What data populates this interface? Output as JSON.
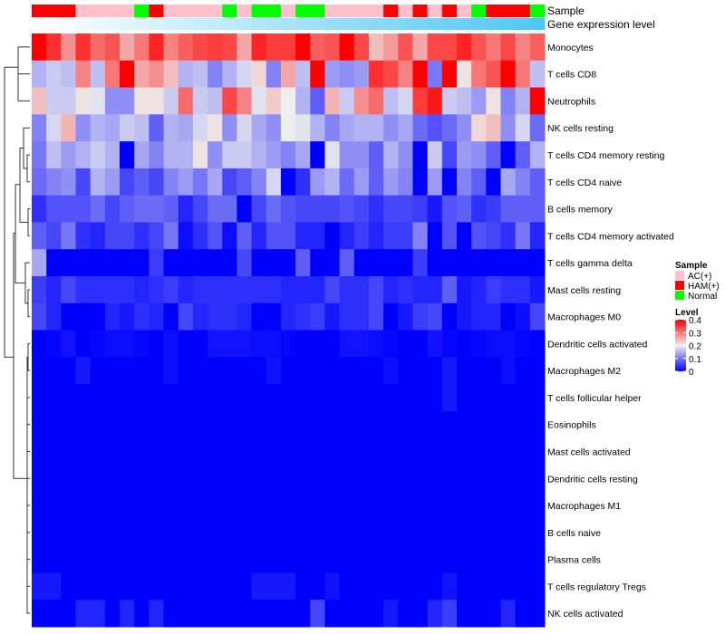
{
  "chart_data": {
    "type": "heatmap",
    "annotation_labels": {
      "sample": "Sample",
      "gene": "Gene expression level"
    },
    "sample_groups": [
      "HAM(+)",
      "HAM(+)",
      "HAM(+)",
      "AC(+)",
      "AC(+)",
      "AC(+)",
      "AC(+)",
      "Normal",
      "HAM(+)",
      "AC(+)",
      "AC(+)",
      "AC(+)",
      "AC(+)",
      "Normal",
      "AC(+)",
      "Normal",
      "Normal",
      "AC(+)",
      "Normal",
      "Normal",
      "AC(+)",
      "AC(+)",
      "AC(+)",
      "AC(+)",
      "HAM(+)",
      "AC(+)",
      "HAM(+)",
      "AC(+)",
      "HAM(+)",
      "AC(+)",
      "Normal",
      "HAM(+)",
      "HAM(+)",
      "HAM(+)",
      "Normal"
    ],
    "rows": [
      "Monocytes",
      "T cells CD8",
      "Neutrophils",
      "NK cells resting",
      "T cells CD4 memory resting",
      "T cells CD4 naive",
      "B cells memory",
      "T cells CD4 memory activated",
      "T cells gamma delta",
      "Mast cells resting",
      "Macrophages M0",
      "Dendritic cells activated",
      "Macrophages M2",
      "T cells follicular helper",
      "Eosinophils",
      "Mast cells activated",
      "Dendritic cells resting",
      "Macrophages M1",
      "B cells naive",
      "Plasma cells",
      "T cells regulatory  Tregs",
      "NK cells activated"
    ],
    "values": [
      [
        0.4,
        0.36,
        0.28,
        0.36,
        0.31,
        0.33,
        0.26,
        0.3,
        0.37,
        0.29,
        0.32,
        0.34,
        0.35,
        0.34,
        0.26,
        0.37,
        0.35,
        0.35,
        0.4,
        0.32,
        0.33,
        0.4,
        0.34,
        0.24,
        0.27,
        0.33,
        0.26,
        0.34,
        0.34,
        0.37,
        0.33,
        0.3,
        0.34,
        0.29,
        0.32
      ],
      [
        0.15,
        0.17,
        0.16,
        0.29,
        0.16,
        0.3,
        0.4,
        0.26,
        0.28,
        0.24,
        0.15,
        0.16,
        0.11,
        0.15,
        0.18,
        0.22,
        0.11,
        0.26,
        0.16,
        0.4,
        0.13,
        0.12,
        0.13,
        0.36,
        0.34,
        0.29,
        0.4,
        0.1,
        0.4,
        0.21,
        0.3,
        0.33,
        0.4,
        0.3,
        0.16
      ],
      [
        0.24,
        0.17,
        0.17,
        0.21,
        0.19,
        0.12,
        0.12,
        0.21,
        0.21,
        0.17,
        0.31,
        0.17,
        0.16,
        0.34,
        0.29,
        0.19,
        0.23,
        0.2,
        0.15,
        0.08,
        0.25,
        0.17,
        0.28,
        0.31,
        0.16,
        0.18,
        0.35,
        0.38,
        0.17,
        0.16,
        0.13,
        0.21,
        0.11,
        0.15,
        0.4
      ],
      [
        0.11,
        0.18,
        0.25,
        0.12,
        0.15,
        0.14,
        0.17,
        0.16,
        0.08,
        0.15,
        0.14,
        0.18,
        0.21,
        0.12,
        0.18,
        0.14,
        0.12,
        0.2,
        0.19,
        0.15,
        0.11,
        0.14,
        0.15,
        0.15,
        0.12,
        0.14,
        0.09,
        0.07,
        0.09,
        0.12,
        0.22,
        0.24,
        0.12,
        0.18,
        0.09
      ],
      [
        0.1,
        0.16,
        0.13,
        0.15,
        0.17,
        0.15,
        0,
        0.14,
        0.11,
        0.15,
        0.15,
        0.21,
        0.12,
        0.17,
        0.17,
        0.15,
        0.13,
        0.11,
        0.14,
        0,
        0.19,
        0.12,
        0.12,
        0.08,
        0.15,
        0.12,
        0,
        0.17,
        0.06,
        0.13,
        0.12,
        0.08,
        0,
        0.08,
        0.15
      ],
      [
        0.09,
        0.11,
        0.12,
        0.06,
        0.15,
        0.13,
        0.06,
        0.08,
        0.06,
        0.11,
        0.13,
        0.1,
        0.14,
        0.06,
        0.08,
        0.11,
        0.18,
        0,
        0.04,
        0.13,
        0.15,
        0.09,
        0.13,
        0.08,
        0.13,
        0.11,
        0,
        0.13,
        0,
        0.11,
        0.08,
        0,
        0.14,
        0.11,
        0.08
      ],
      [
        0.04,
        0.07,
        0.07,
        0.07,
        0.09,
        0.06,
        0.08,
        0.09,
        0.09,
        0.08,
        0.03,
        0.06,
        0.09,
        0.09,
        0,
        0.06,
        0.09,
        0.07,
        0.06,
        0.06,
        0.06,
        0.07,
        0.06,
        0.04,
        0.06,
        0.06,
        0.05,
        0.02,
        0.07,
        0.08,
        0.04,
        0.05,
        0.08,
        0.08,
        0.08
      ],
      [
        0.08,
        0.06,
        0.1,
        0.04,
        0.03,
        0.06,
        0.06,
        0.04,
        0.06,
        0.1,
        0.01,
        0.04,
        0.07,
        0.01,
        0.08,
        0.03,
        0.07,
        0.07,
        0.03,
        0.03,
        0,
        0.03,
        0.05,
        0.03,
        0.05,
        0.05,
        0.11,
        0,
        0.07,
        0,
        0.07,
        0.06,
        0.04,
        0.1,
        0.03
      ],
      [
        0.14,
        0,
        0,
        0,
        0,
        0,
        0,
        0,
        0.05,
        0,
        0,
        0,
        0,
        0,
        0.06,
        0,
        0,
        0,
        0.08,
        0,
        0,
        0.08,
        0,
        0,
        0,
        0,
        0.05,
        0,
        0,
        0,
        0,
        0,
        0,
        0,
        0
      ],
      [
        0.05,
        0.03,
        0.06,
        0.04,
        0.04,
        0.04,
        0.04,
        0.03,
        0.04,
        0.05,
        0.03,
        0.04,
        0.04,
        0.04,
        0.04,
        0.04,
        0.04,
        0.03,
        0.03,
        0.03,
        0.06,
        0.04,
        0.04,
        0.06,
        0.03,
        0.04,
        0.03,
        0.03,
        0.08,
        0.02,
        0.03,
        0.05,
        0.04,
        0.04,
        0.02
      ],
      [
        0.06,
        0.03,
        0,
        0,
        0,
        0.03,
        0.02,
        0.04,
        0.03,
        0,
        0.06,
        0.03,
        0.04,
        0.04,
        0.03,
        0,
        0,
        0.03,
        0.04,
        0.05,
        0.02,
        0.04,
        0.04,
        0.06,
        0,
        0.02,
        0.05,
        0.06,
        0,
        0.02,
        0.03,
        0.03,
        0,
        0.01,
        0.06
      ],
      [
        0,
        0.005,
        0.015,
        0,
        0.005,
        0.01,
        0.01,
        0.005,
        0,
        0.01,
        0,
        0,
        0.015,
        0.015,
        0.015,
        0.01,
        0.01,
        0.005,
        0,
        0,
        0,
        0.015,
        0.015,
        0.01,
        0.005,
        0,
        0,
        0.015,
        0.005,
        0,
        0.005,
        0.01,
        0.01,
        0.005,
        0
      ],
      [
        0,
        0,
        0,
        0.02,
        0,
        0,
        0,
        0,
        0,
        0.01,
        0,
        0,
        0,
        0,
        0,
        0,
        0.015,
        0,
        0,
        0,
        0,
        0,
        0,
        0,
        0.01,
        0,
        0,
        0,
        0.02,
        0,
        0,
        0,
        0.01,
        0,
        0
      ],
      [
        0,
        0,
        0,
        0,
        0,
        0,
        0,
        0,
        0,
        0,
        0,
        0,
        0,
        0,
        0,
        0,
        0,
        0,
        0,
        0,
        0,
        0,
        0,
        0,
        0,
        0,
        0,
        0,
        0.02,
        0,
        0,
        0,
        0,
        0,
        0
      ],
      [
        0,
        0,
        0,
        0,
        0,
        0,
        0,
        0,
        0,
        0,
        0,
        0,
        0,
        0,
        0,
        0,
        0,
        0,
        0,
        0,
        0,
        0,
        0,
        0,
        0,
        0,
        0,
        0,
        0,
        0,
        0,
        0,
        0,
        0,
        0
      ],
      [
        0,
        0,
        0,
        0,
        0,
        0,
        0,
        0,
        0,
        0,
        0,
        0,
        0,
        0,
        0,
        0,
        0,
        0,
        0,
        0,
        0,
        0,
        0,
        0,
        0,
        0,
        0,
        0,
        0,
        0,
        0,
        0,
        0,
        0,
        0
      ],
      [
        0,
        0,
        0,
        0,
        0,
        0,
        0,
        0,
        0,
        0,
        0,
        0,
        0,
        0,
        0,
        0,
        0,
        0,
        0,
        0,
        0,
        0,
        0,
        0,
        0,
        0,
        0,
        0,
        0,
        0,
        0,
        0,
        0,
        0,
        0
      ],
      [
        0,
        0,
        0,
        0,
        0,
        0,
        0,
        0,
        0,
        0,
        0,
        0,
        0,
        0,
        0,
        0,
        0,
        0,
        0,
        0,
        0,
        0,
        0,
        0,
        0,
        0,
        0,
        0,
        0,
        0,
        0,
        0,
        0,
        0,
        0
      ],
      [
        0,
        0,
        0,
        0,
        0,
        0,
        0,
        0,
        0,
        0,
        0,
        0,
        0,
        0,
        0,
        0,
        0,
        0,
        0,
        0,
        0,
        0,
        0,
        0,
        0,
        0,
        0,
        0,
        0,
        0,
        0,
        0,
        0,
        0,
        0
      ],
      [
        0,
        0,
        0,
        0,
        0,
        0,
        0,
        0,
        0,
        0,
        0,
        0,
        0,
        0,
        0,
        0,
        0,
        0,
        0,
        0,
        0,
        0,
        0,
        0,
        0,
        0,
        0,
        0,
        0,
        0,
        0,
        0,
        0,
        0,
        0
      ],
      [
        0.02,
        0.02,
        0,
        0,
        0,
        0,
        0,
        0,
        0,
        0,
        0,
        0,
        0,
        0,
        0,
        0.02,
        0.02,
        0.02,
        0,
        0,
        0.015,
        0,
        0,
        0,
        0,
        0,
        0,
        0,
        0.015,
        0,
        0,
        0,
        0,
        0,
        0
      ],
      [
        0,
        0,
        0,
        0.03,
        0.03,
        0,
        0.03,
        0,
        0.03,
        0,
        0,
        0,
        0,
        0,
        0,
        0,
        0,
        0,
        0,
        0.06,
        0,
        0,
        0,
        0,
        0.02,
        0,
        0,
        0.03,
        0.05,
        0,
        0,
        0,
        0.03,
        0,
        0
      ]
    ],
    "gene_level_colors": [
      "#FFFFFF",
      "#4FC8F5"
    ],
    "legend": {
      "sample_title": "Sample",
      "sample_items": [
        {
          "label": "AC(+)",
          "color": "#FFC0CB"
        },
        {
          "label": "HAM(+)",
          "color": "#FF0000"
        },
        {
          "label": "Normal",
          "color": "#00FF00"
        }
      ],
      "level_title": "Level",
      "level_ticks": [
        "0.4",
        "0.3",
        "0.2",
        "0.1",
        "0"
      ],
      "level_range": [
        0,
        0.4
      ],
      "level_colors": [
        "#0000FF",
        "#EEEEEE",
        "#FF0000"
      ]
    }
  }
}
